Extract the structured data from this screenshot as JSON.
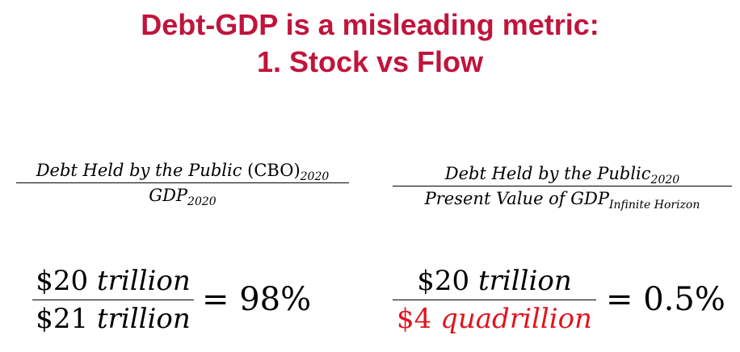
{
  "title": {
    "line1": "Debt-GDP is a misleading metric:",
    "line2": "1. Stock vs Flow"
  },
  "left_formula": {
    "numerator_text": "Debt Held by the Public ",
    "numerator_paren": "(CBO)",
    "numerator_sub": "2020",
    "denominator_text": "GDP",
    "denominator_sub": "2020",
    "calc_numerator_amount": "$20",
    "calc_numerator_unit": "trillion",
    "calc_denominator_amount": "$21",
    "calc_denominator_unit": "trillion",
    "result": "= 98%"
  },
  "right_formula": {
    "numerator_text": "Debt Held by the Public",
    "numerator_sub": "2020",
    "denominator_text": "Present Value of GDP",
    "denominator_sub": "Infinite Horizon",
    "calc_numerator_amount": "$20",
    "calc_numerator_unit": "trillion",
    "calc_denominator_amount": "$4",
    "calc_denominator_unit": "quadrillion",
    "result": "= 0.5%"
  },
  "colors": {
    "title": "#c0143c",
    "highlight": "#e0141e"
  }
}
